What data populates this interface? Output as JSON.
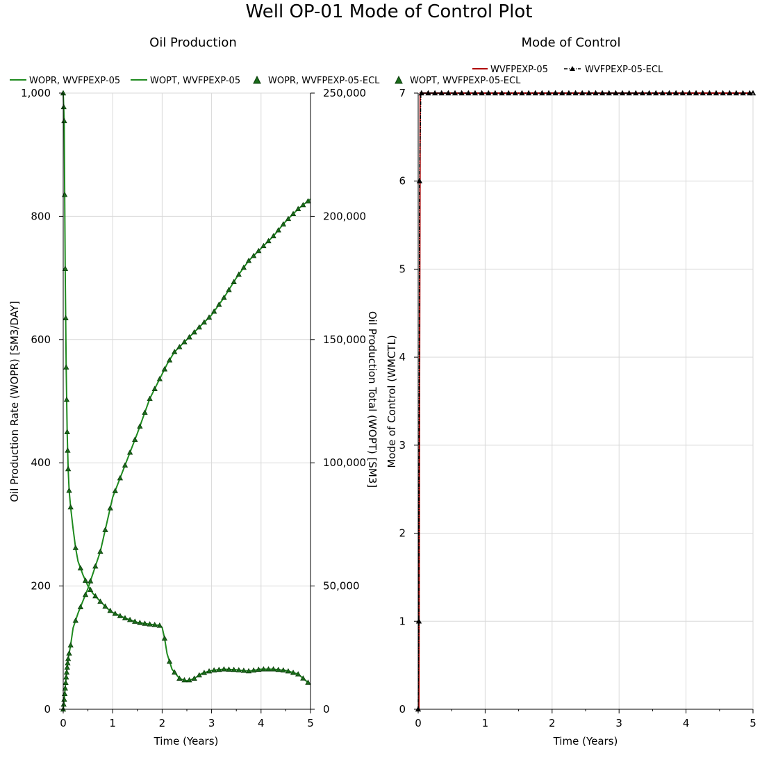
{
  "figure_title": "Well OP-01 Mode of Control Plot",
  "colors": {
    "wopr_line": "#1e8a1e",
    "wopt_line": "#1e8a1e",
    "ecl_marker_fill": "#1a6b1a",
    "ecl_marker_stroke": "#0b3d0b",
    "moc_line": "#b00000",
    "moc_ecl": "#000000",
    "grid": "#d9d9d9",
    "axis": "#000000"
  },
  "chart_data": [
    {
      "type": "line",
      "title": "Oil Production",
      "xlabel": "Time (Years)",
      "ylabel": "Oil Production Rate (WOPR) [SM3/DAY]",
      "ylabel_right": "Oil Production Total (WOPT) [SM3]",
      "xlim": [
        0,
        5
      ],
      "ylim": [
        0,
        1000
      ],
      "ylim_right": [
        0,
        250000
      ],
      "x_ticks": [
        "0",
        "1",
        "2",
        "3",
        "4",
        "5"
      ],
      "y_ticks": [
        "0",
        "200",
        "400",
        "600",
        "800",
        "1,000"
      ],
      "y_right_ticks": [
        "0",
        "50,000",
        "100,000",
        "150,000",
        "200,000",
        "250,000"
      ],
      "grid": true,
      "legend": "top",
      "legend_entries": [
        "WOPR, WVFPEXP-05",
        "WOPT, WVFPEXP-05",
        "WOPR, WVFPEXP-05-ECL",
        "WOPT, WVFPEXP-05-ECL"
      ],
      "wopr": {
        "x": [
          0,
          0.02,
          0.04,
          0.06,
          0.08,
          0.1,
          0.12,
          0.15,
          0.2,
          0.25,
          0.3,
          0.4,
          0.5,
          0.6,
          0.75,
          0.9,
          1.0,
          1.25,
          1.5,
          1.75,
          1.95,
          2.0,
          2.05,
          2.1,
          2.2,
          2.35,
          2.5,
          2.65,
          2.8,
          3.0,
          3.25,
          3.5,
          3.75,
          4.0,
          4.25,
          4.5,
          4.75,
          5.0
        ],
        "y": [
          1000,
          955,
          715,
          555,
          450,
          390,
          355,
          328,
          293,
          262,
          240,
          218,
          200,
          188,
          175,
          163,
          157,
          148,
          141,
          138,
          136,
          133,
          115,
          90,
          65,
          50,
          46,
          50,
          58,
          63,
          65,
          64,
          62,
          65,
          65,
          63,
          57,
          40
        ]
      },
      "wopt": {
        "x": [
          0,
          0.02,
          0.04,
          0.06,
          0.08,
          0.1,
          0.15,
          0.2,
          0.3,
          0.4,
          0.5,
          0.75,
          1.0,
          1.25,
          1.5,
          1.75,
          2.0,
          2.1,
          2.25,
          2.5,
          2.75,
          3.0,
          3.25,
          3.5,
          3.75,
          4.0,
          4.25,
          4.5,
          4.75,
          5.0
        ],
        "y": [
          0,
          4000,
          8500,
          13000,
          17000,
          20500,
          26000,
          33000,
          39000,
          44000,
          49000,
          64000,
          86000,
          99000,
          112000,
          126000,
          136000,
          140000,
          145000,
          150000,
          155000,
          160000,
          167000,
          175000,
          182000,
          187000,
          192000,
          198000,
          203000,
          207000
        ]
      }
    },
    {
      "type": "line",
      "title": "Mode of Control",
      "xlabel": "Time (Years)",
      "ylabel": "Mode of Control (WMCTL)",
      "xlim": [
        0,
        5
      ],
      "ylim": [
        0,
        7
      ],
      "x_ticks": [
        "0",
        "1",
        "2",
        "3",
        "4",
        "5"
      ],
      "y_ticks": [
        "0",
        "1",
        "2",
        "3",
        "4",
        "5",
        "6",
        "7"
      ],
      "grid": true,
      "legend": "top",
      "legend_entries": [
        "WVFPEXP-05",
        "WVFPEXP-05-ECL"
      ],
      "series": [
        {
          "name": "WVFPEXP-05",
          "x": [
            0.01,
            0.03,
            0.04,
            5
          ],
          "y": [
            0,
            7,
            7,
            7
          ]
        },
        {
          "name": "WVFPEXP-05-ECL",
          "x": [
            0,
            0.01,
            0.02,
            0.04,
            5
          ],
          "y": [
            0,
            1,
            6,
            7,
            7
          ]
        }
      ]
    }
  ]
}
